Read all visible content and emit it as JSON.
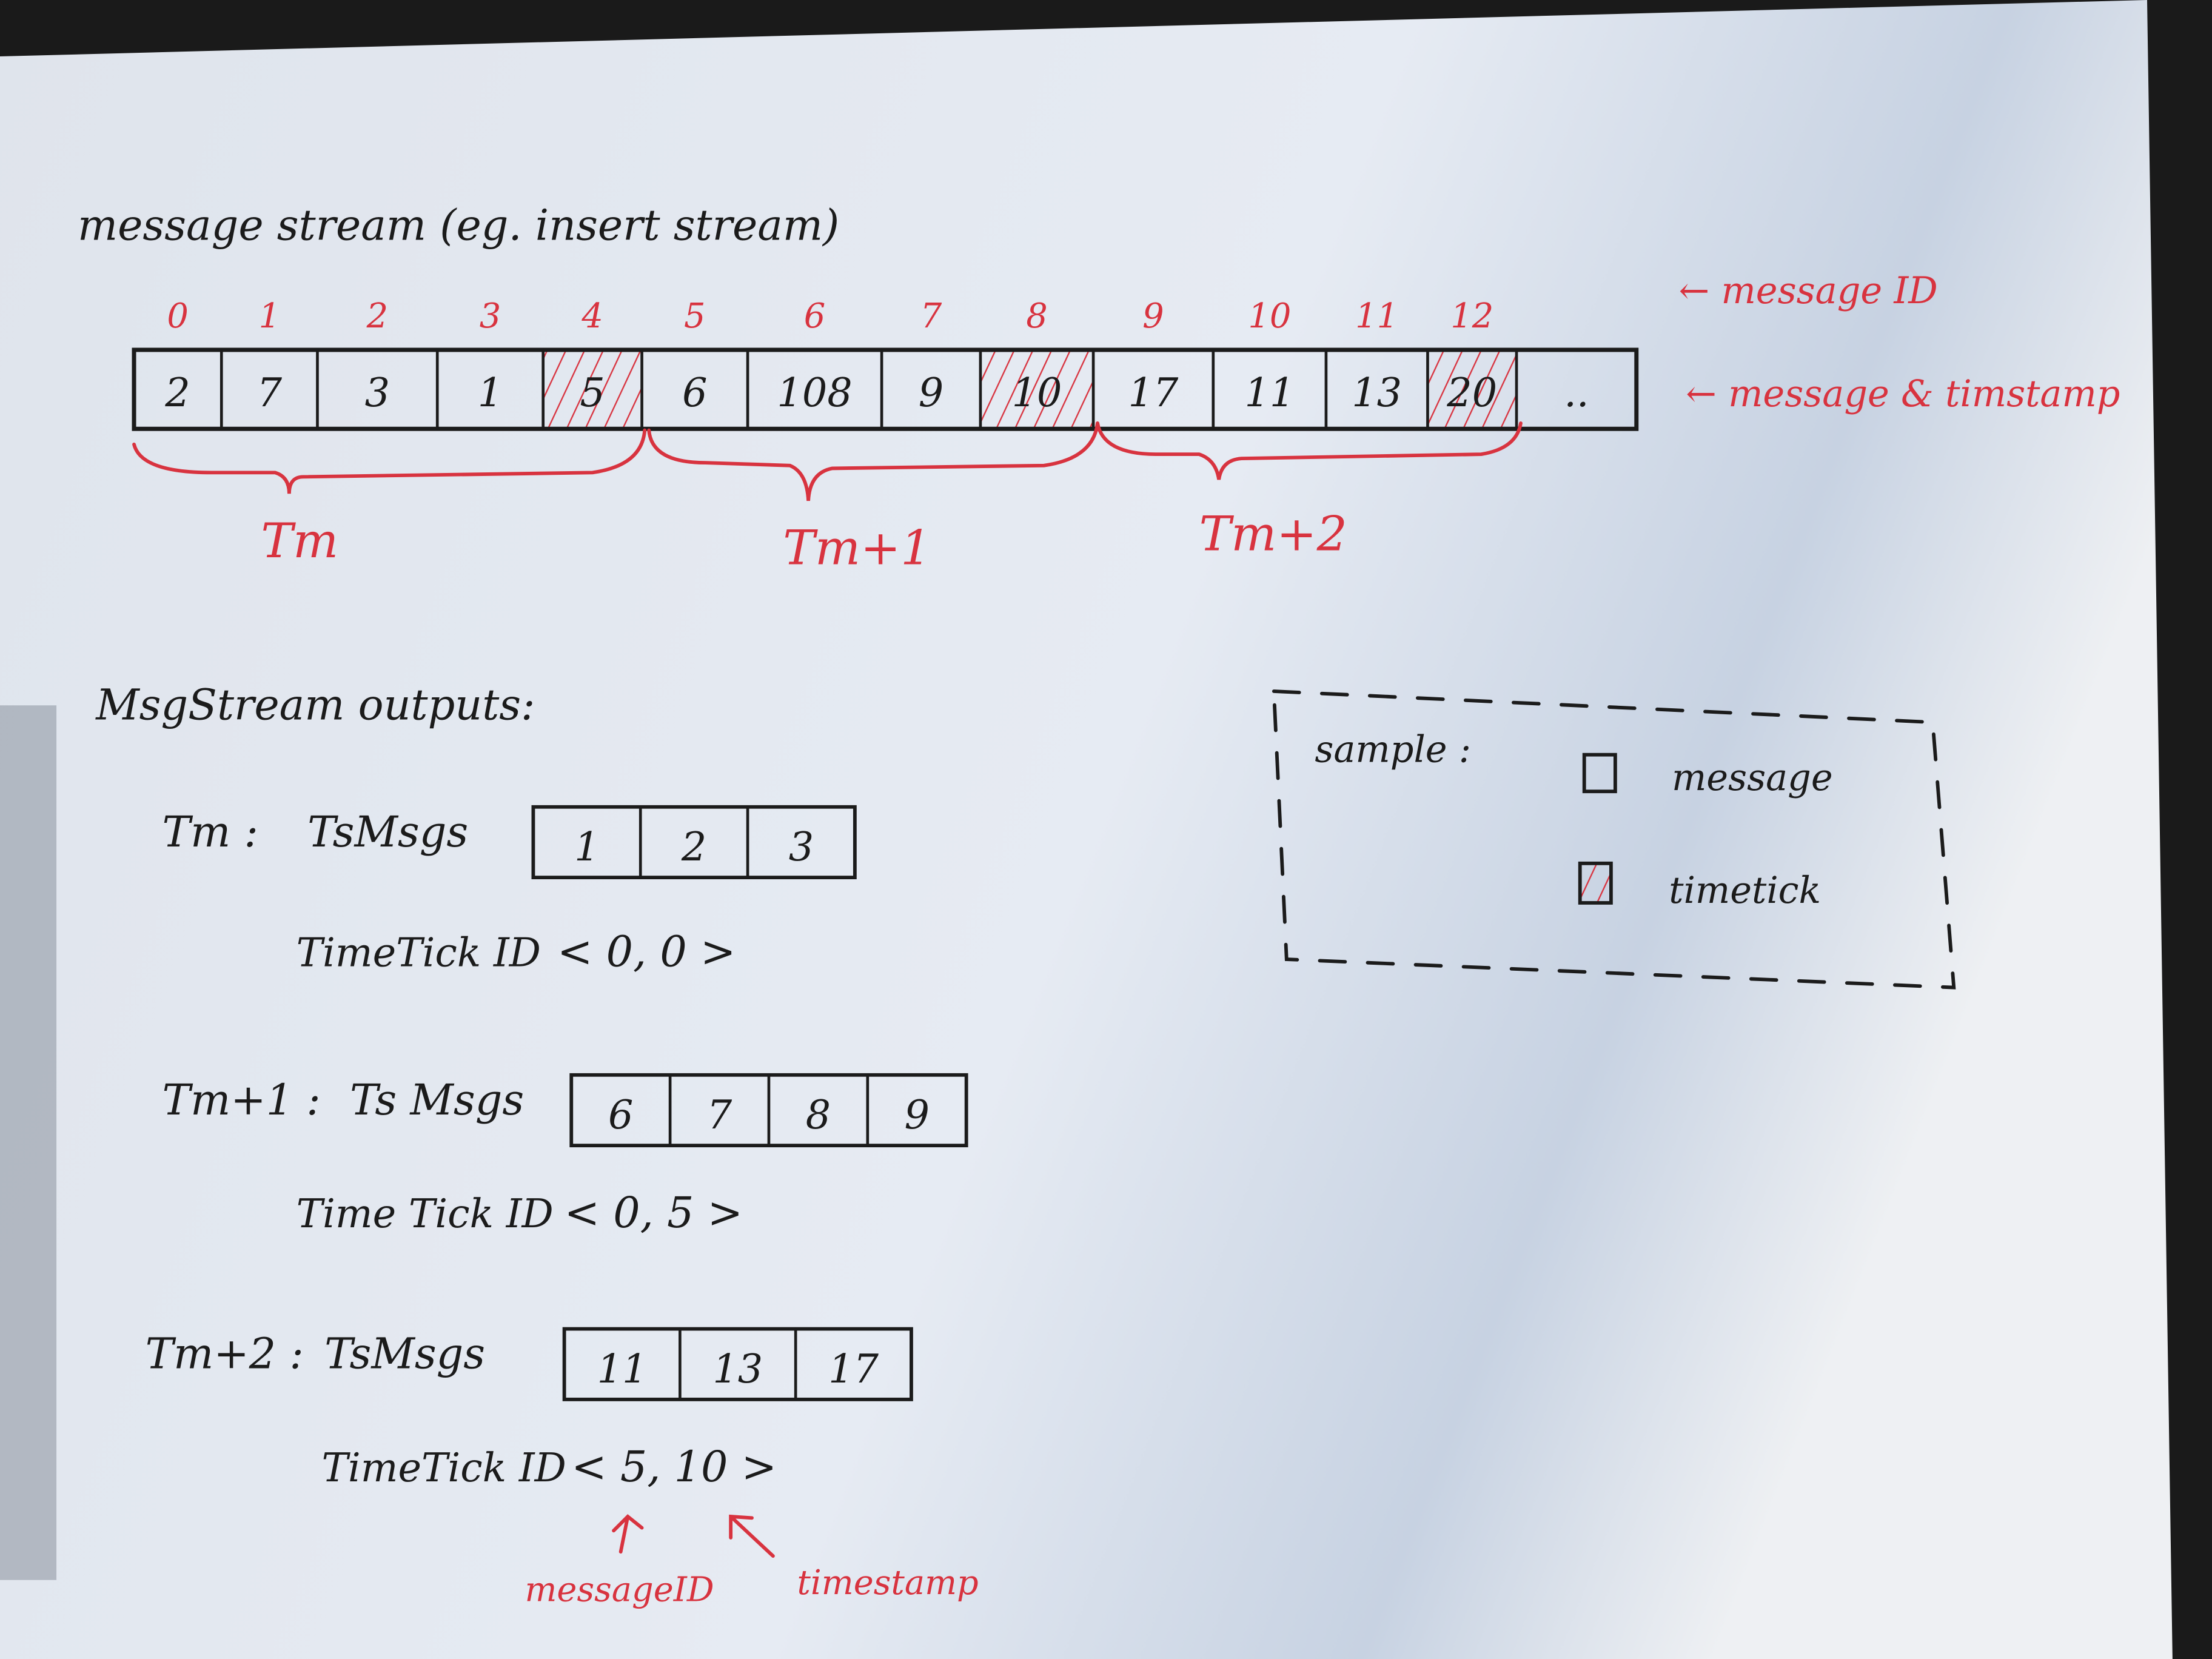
{
  "title": "message stream (eg. insert stream)",
  "stream": {
    "message_ids": [
      "0",
      "1",
      "2",
      "3",
      "4",
      "5",
      "6",
      "7",
      "8",
      "9",
      "10",
      "11",
      "12"
    ],
    "timestamps": [
      "2",
      "7",
      "3",
      "1",
      "5",
      "6",
      "108",
      "9",
      "10",
      "17",
      "11",
      "13",
      "20",
      ".."
    ],
    "timetick_indices": [
      4,
      8,
      12
    ],
    "id_label": "← message ID",
    "ts_label": "← message & timstamp"
  },
  "intervals": [
    {
      "label": "Tm"
    },
    {
      "label": "Tm+1"
    },
    {
      "label": "Tm+2"
    }
  ],
  "outputs": {
    "heading": "MsgStream outputs:",
    "groups": [
      {
        "label": "Tm :",
        "msgs_label": "TsMsgs",
        "msgs": [
          "1",
          "2",
          "3"
        ],
        "tt_label": "TimeTick ID",
        "tt_value": "< 0, 0 >"
      },
      {
        "label": "Tm+1 :",
        "msgs_label": "Ts Msgs",
        "msgs": [
          "6",
          "7",
          "8",
          "9"
        ],
        "tt_label": "Time Tick ID",
        "tt_value": "< 0, 5 >"
      },
      {
        "label": "Tm+2 :",
        "msgs_label": "TsMsgs",
        "msgs": [
          "11",
          "13",
          "17"
        ],
        "tt_label": "TimeTick ID",
        "tt_value": "< 5, 10 >"
      }
    ],
    "annot_message_id": "messageID",
    "annot_timestamp": "timestamp"
  },
  "legend": {
    "title": "sample :",
    "items": [
      {
        "label": "message",
        "type": "message"
      },
      {
        "label": "timetick",
        "type": "timetick"
      }
    ]
  },
  "colors": {
    "paper": "#e4e9f1",
    "ink": "#1b1b1b",
    "red_ink": "#d8333f",
    "background": "#1a1a1a"
  }
}
